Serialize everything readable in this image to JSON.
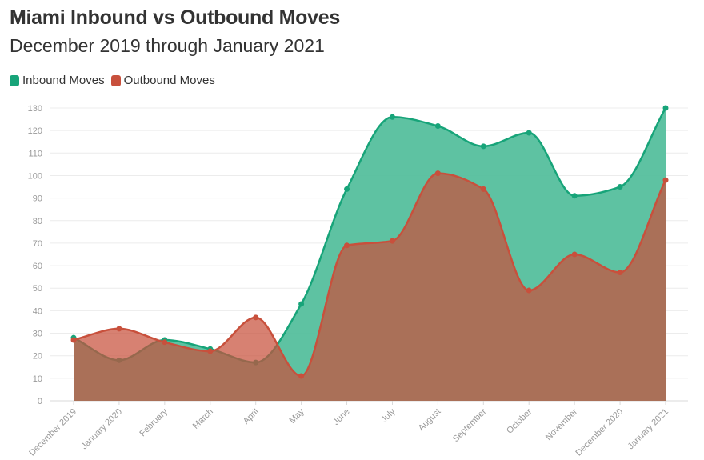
{
  "header": {
    "title": "Miami Inbound vs Outbound Moves",
    "subtitle": "December 2019 through January 2021"
  },
  "legend": [
    {
      "label": "Inbound Moves",
      "color": "#17a479"
    },
    {
      "label": "Outbound Moves",
      "color": "#c8503c"
    }
  ],
  "chart_data": {
    "type": "area",
    "title": "Miami Inbound vs Outbound Moves",
    "subtitle": "December 2019 through January 2021",
    "categories": [
      "December 2019",
      "January 2020",
      "February",
      "March",
      "April",
      "May",
      "June",
      "July",
      "August",
      "September",
      "October",
      "November",
      "December 2020",
      "January 2021"
    ],
    "series": [
      {
        "name": "Inbound Moves",
        "color": "#17a479",
        "fill": "#55bf9d",
        "values": [
          28,
          18,
          27,
          23,
          17,
          43,
          94,
          126,
          122,
          113,
          119,
          91,
          95,
          130
        ]
      },
      {
        "name": "Outbound Moves",
        "color": "#c8503c",
        "fill": "#c8503c",
        "values": [
          27,
          32,
          26,
          22,
          37,
          11,
          69,
          71,
          101,
          94,
          49,
          65,
          57,
          98
        ]
      }
    ],
    "ylim": [
      0,
      130
    ],
    "yticks": [
      0,
      10,
      20,
      30,
      40,
      50,
      60,
      70,
      80,
      90,
      100,
      110,
      120,
      130
    ],
    "xlabel": "",
    "ylabel": "",
    "grid": true,
    "legend_position": "top-left"
  }
}
